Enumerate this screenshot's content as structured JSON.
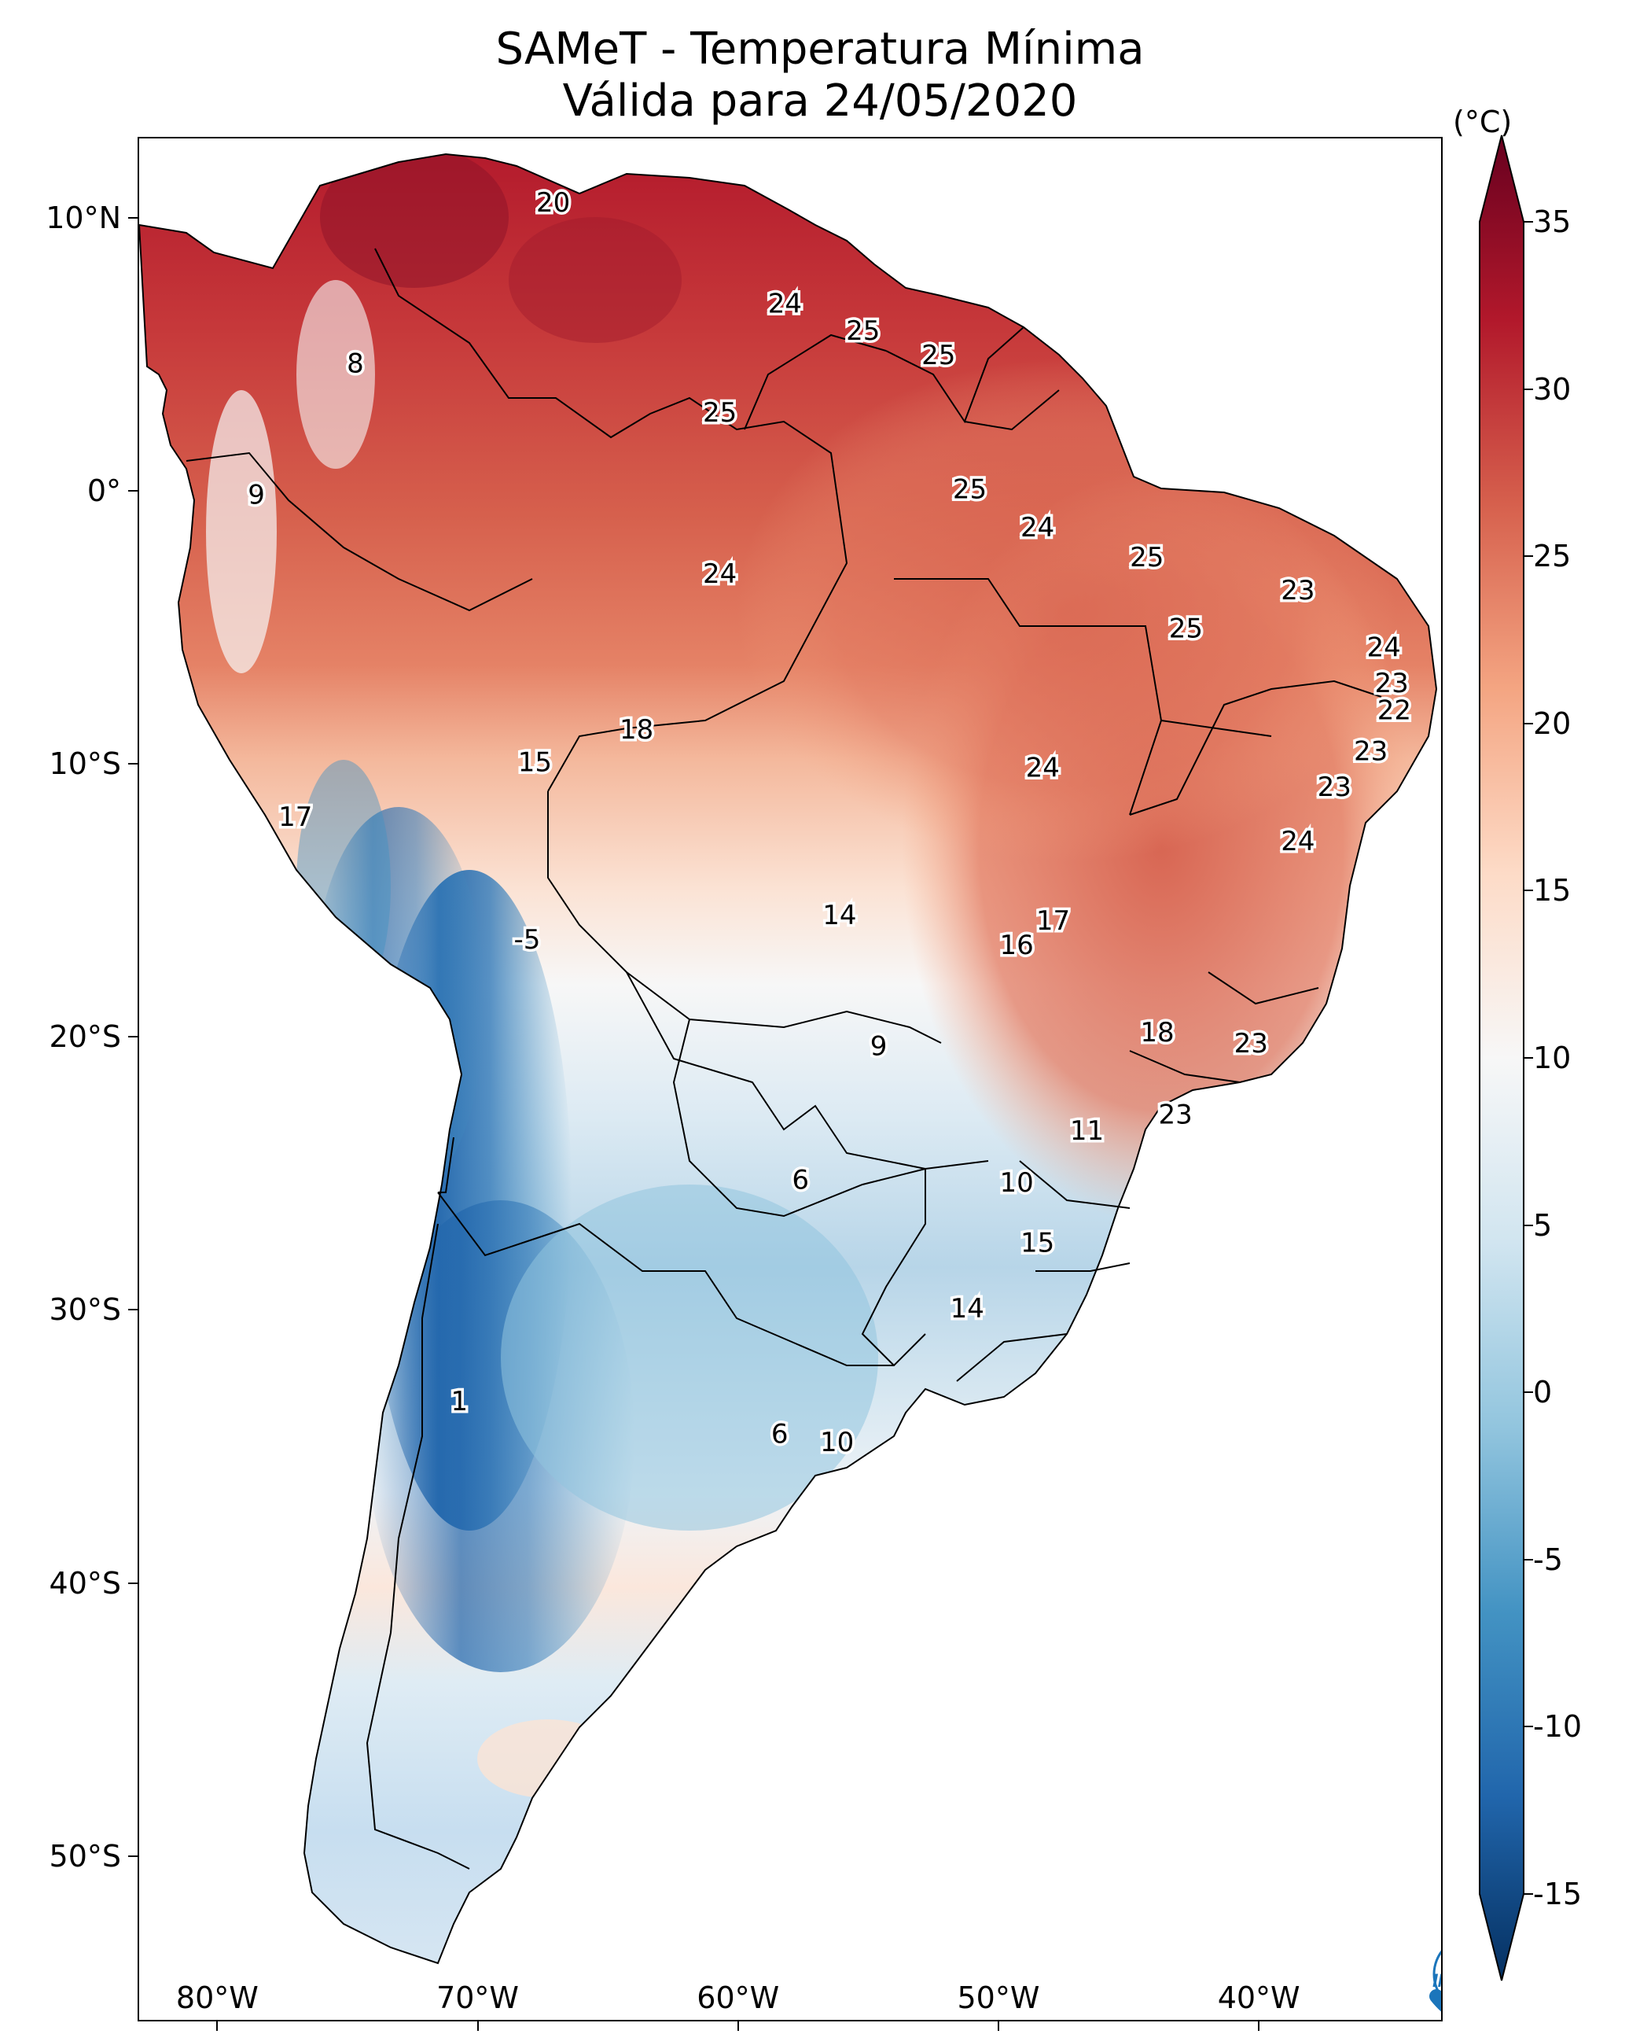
{
  "title": "SAMeT - Temperatura Mínima",
  "subtitle": "Válida para 24/05/2020",
  "colorbar": {
    "unit": "(°C)",
    "ticks": [
      "35",
      "30",
      "25",
      "20",
      "15",
      "10",
      "5",
      "0",
      "-5",
      "-10",
      "-15"
    ],
    "tick_values": [
      35,
      30,
      25,
      20,
      15,
      10,
      5,
      0,
      -5,
      -10,
      -15
    ],
    "range": [
      -15,
      35
    ],
    "colormap": "RdBu_r",
    "stops": [
      "#053061",
      "#2166ac",
      "#4393c3",
      "#92c5de",
      "#d1e5f0",
      "#f7f7f7",
      "#fddbc7",
      "#f4a582",
      "#d6604d",
      "#b2182b",
      "#67001f"
    ]
  },
  "axes": {
    "lat_labels": [
      "10°N",
      "0°",
      "10°S",
      "20°S",
      "30°S",
      "40°S",
      "50°S"
    ],
    "lat_values": [
      10,
      0,
      -10,
      -20,
      -30,
      -40,
      -50
    ],
    "lon_labels": [
      "80°W",
      "70°W",
      "60°W",
      "50°W",
      "40°W"
    ],
    "lon_values": [
      -80,
      -70,
      -60,
      -50,
      -40
    ],
    "lon_range": [
      -83,
      -33
    ],
    "lat_range": [
      12.9,
      -56
    ]
  },
  "city_values": [
    {
      "label": "20",
      "lon": -67.1,
      "lat": 10.5
    },
    {
      "label": "8",
      "lon": -74.7,
      "lat": 4.6
    },
    {
      "label": "9",
      "lon": -78.5,
      "lat": -0.2
    },
    {
      "label": "24",
      "lon": -60.7,
      "lat": -3.1
    },
    {
      "label": "25",
      "lon": -60.7,
      "lat": 2.8
    },
    {
      "label": "24",
      "lon": -58.2,
      "lat": 6.8
    },
    {
      "label": "25",
      "lon": -55.2,
      "lat": 5.8
    },
    {
      "label": "25",
      "lon": -52.3,
      "lat": 4.9
    },
    {
      "label": "25",
      "lon": -51.1,
      "lat": 0.0
    },
    {
      "label": "24",
      "lon": -48.5,
      "lat": -1.4
    },
    {
      "label": "25",
      "lon": -44.3,
      "lat": -2.5
    },
    {
      "label": "25",
      "lon": -42.8,
      "lat": -5.1
    },
    {
      "label": "23",
      "lon": -38.5,
      "lat": -3.7
    },
    {
      "label": "24",
      "lon": -35.2,
      "lat": -5.8
    },
    {
      "label": "23",
      "lon": -34.9,
      "lat": -7.1
    },
    {
      "label": "22",
      "lon": -34.8,
      "lat": -8.1
    },
    {
      "label": "23",
      "lon": -35.7,
      "lat": -9.6
    },
    {
      "label": "23",
      "lon": -37.1,
      "lat": -10.9
    },
    {
      "label": "24",
      "lon": -38.5,
      "lat": -12.9
    },
    {
      "label": "24",
      "lon": -48.3,
      "lat": -10.2
    },
    {
      "label": "18",
      "lon": -63.9,
      "lat": -8.8
    },
    {
      "label": "15",
      "lon": -67.8,
      "lat": -10.0
    },
    {
      "label": "17",
      "lon": -77.0,
      "lat": -12.0
    },
    {
      "label": "14",
      "lon": -56.1,
      "lat": -15.6
    },
    {
      "label": "17",
      "lon": -47.9,
      "lat": -15.8
    },
    {
      "label": "16",
      "lon": -49.3,
      "lat": -16.7
    },
    {
      "label": "-5",
      "lon": -68.1,
      "lat": -16.5
    },
    {
      "label": "9",
      "lon": -54.6,
      "lat": -20.4
    },
    {
      "label": "18",
      "lon": -43.9,
      "lat": -19.9
    },
    {
      "label": "23",
      "lon": -40.3,
      "lat": -20.3
    },
    {
      "label": "23",
      "lon": -43.2,
      "lat": -22.9
    },
    {
      "label": "11",
      "lon": -46.6,
      "lat": -23.5
    },
    {
      "label": "6",
      "lon": -57.6,
      "lat": -25.3
    },
    {
      "label": "10",
      "lon": -49.3,
      "lat": -25.4
    },
    {
      "label": "15",
      "lon": -48.5,
      "lat": -27.6
    },
    {
      "label": "14",
      "lon": -51.2,
      "lat": -30.0
    },
    {
      "label": "1",
      "lon": -70.7,
      "lat": -33.4
    },
    {
      "label": "6",
      "lon": -58.4,
      "lat": -34.6
    },
    {
      "label": "10",
      "lon": -56.2,
      "lat": -34.9
    }
  ],
  "logo_text": "INPE"
}
